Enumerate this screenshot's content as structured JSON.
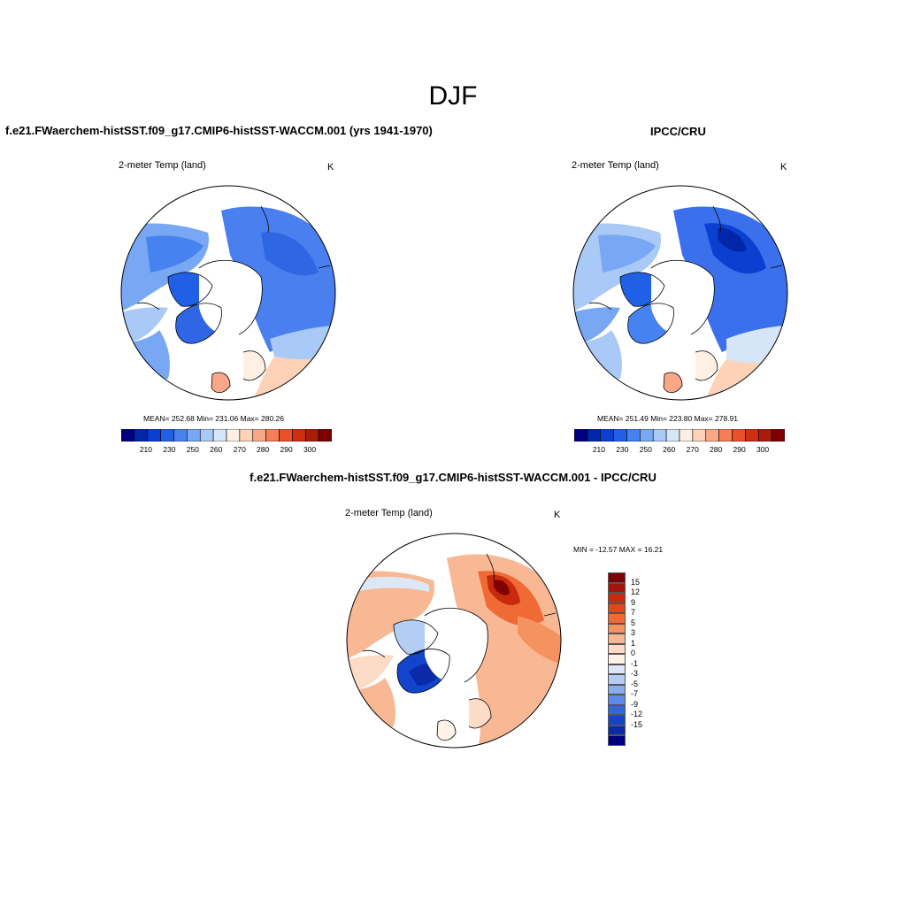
{
  "main_title": "DJF",
  "panels": [
    {
      "title": "f.e21.FWaerchem-histSST.f09_g17.CMIP6-histSST-WACCM.001 (yrs 1941-1970)",
      "variable": "2-meter Temp (land)",
      "units": "K",
      "stats": "MEAN= 252.68  Min= 231.06  Max= 280.26"
    },
    {
      "title": "IPCC/CRU",
      "variable": "2-meter Temp (land)",
      "units": "K",
      "stats": "MEAN= 251.49  Min= 223.80  Max= 278.91"
    },
    {
      "title": "f.e21.FWaerchem-histSST.f09_g17.CMIP6-histSST-WACCM.001 - IPCC/CRU",
      "variable": "2-meter Temp (land)",
      "units": "K",
      "stats": "MIN = -12.57 MAX =  16.21"
    }
  ],
  "abs_colorbar": {
    "colors": [
      "#00007f",
      "#0027a8",
      "#0a3fd0",
      "#2060e6",
      "#4682f0",
      "#78a8f4",
      "#a9c9f6",
      "#d6e6f8",
      "#fff0e3",
      "#fdd2b6",
      "#f9a787",
      "#f57d58",
      "#eb5129",
      "#cd3010",
      "#a91c0a",
      "#7f0000"
    ],
    "tick_labels": [
      "210",
      "230",
      "250",
      "260",
      "270",
      "280",
      "290",
      "300"
    ]
  },
  "diff_colorbar": {
    "colors": [
      "#7f0000",
      "#a3140a",
      "#c82a0c",
      "#e64514",
      "#f06a36",
      "#f5935f",
      "#f8b894",
      "#fcdcc6",
      "#fff2e6",
      "#dce8f8",
      "#b3cdf4",
      "#87acef",
      "#5b8aea",
      "#3166e0",
      "#1344cc",
      "#0a2aa8",
      "#00007f"
    ],
    "labels": [
      "15",
      "12",
      "9",
      "7",
      "5",
      "3",
      "1",
      "0",
      "-1",
      "-3",
      "-5",
      "-7",
      "-9",
      "-12",
      "-15"
    ]
  }
}
